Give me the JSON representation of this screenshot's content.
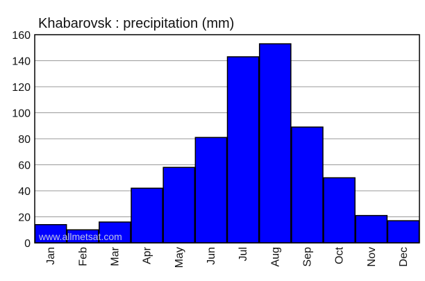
{
  "chart_data": {
    "type": "bar",
    "title": "Khabarovsk : precipitation (mm)",
    "xlabel": "",
    "ylabel": "",
    "categories": [
      "Jan",
      "Feb",
      "Mar",
      "Apr",
      "May",
      "Jun",
      "Jul",
      "Aug",
      "Sep",
      "Oct",
      "Nov",
      "Dec"
    ],
    "values": [
      14,
      10,
      16,
      42,
      58,
      81,
      143,
      153,
      89,
      50,
      21,
      17
    ],
    "ylim": [
      0,
      160
    ],
    "yticks": [
      0,
      20,
      40,
      60,
      80,
      100,
      120,
      140,
      160
    ],
    "grid": true,
    "legend": "none"
  },
  "watermark": "www.allmetsat.com",
  "colors": {
    "bar_fill": "#0000ff",
    "bar_stroke": "#000000",
    "grid": "#9a9a9a",
    "axis": "#000000"
  }
}
